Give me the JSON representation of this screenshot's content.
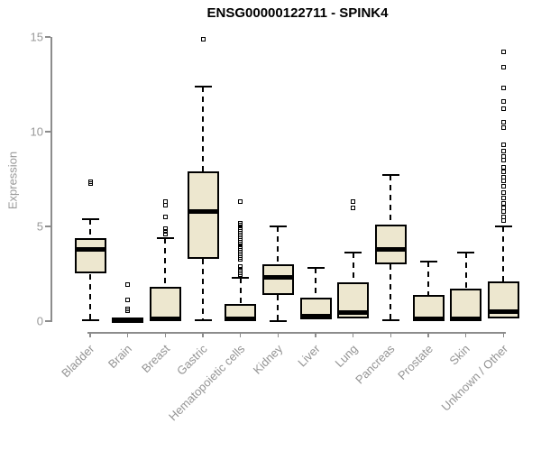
{
  "title": "ENSG00000122711 - SPINK4",
  "chart_data": {
    "type": "boxplot",
    "title": "ENSG00000122711 - SPINK4",
    "xlabel": "",
    "ylabel": "Expression",
    "ylim": [
      0,
      15
    ],
    "yticks": [
      0,
      5,
      10,
      15
    ],
    "grid": false,
    "legend": "none",
    "colors": {
      "box_fill": "#ede7cf",
      "box_border": "#000000",
      "median": "#000000",
      "whisker": "#000000",
      "axis": "#8c8c8c",
      "tick_label": "#999999",
      "title": "#000000"
    },
    "categories": [
      "Bladder",
      "Brain",
      "Breast",
      "Gastric",
      "Hematopoietic cells",
      "Kidney",
      "Liver",
      "Lung",
      "Pancreas",
      "Prostate",
      "Skin",
      "Unknown / Other"
    ],
    "series": [
      {
        "category": "Bladder",
        "whisker_low": 0.05,
        "q1": 2.5,
        "median": 3.8,
        "q3": 4.4,
        "whisker_high": 5.4,
        "outliers": [
          7.25,
          7.35
        ]
      },
      {
        "category": "Brain",
        "whisker_low": null,
        "q1": 0.0,
        "median": 0.05,
        "q3": 0.1,
        "whisker_high": null,
        "outliers": [
          0.55,
          0.65,
          1.1,
          1.95
        ]
      },
      {
        "category": "Breast",
        "whisker_low": null,
        "q1": 0.05,
        "median": 0.12,
        "q3": 1.8,
        "whisker_high": 4.4,
        "outliers": [
          4.6,
          4.75,
          4.9,
          5.5,
          6.1,
          6.3
        ]
      },
      {
        "category": "Gastric",
        "whisker_low": 0.05,
        "q1": 3.3,
        "median": 5.8,
        "q3": 7.9,
        "whisker_high": 12.4,
        "outliers": [
          14.9
        ]
      },
      {
        "category": "Hematopoietic cells",
        "whisker_low": null,
        "q1": 0.03,
        "median": 0.1,
        "q3": 0.9,
        "whisker_high": 2.3,
        "outliers": [
          2.35,
          2.45,
          2.55,
          2.65,
          2.75,
          2.9,
          3.25,
          3.35,
          3.45,
          3.55,
          3.65,
          3.75,
          3.85,
          3.95,
          4.05,
          4.15,
          4.25,
          4.35,
          4.45,
          4.55,
          4.65,
          4.75,
          4.85,
          4.95,
          5.05,
          5.15,
          6.3
        ]
      },
      {
        "category": "Kidney",
        "whisker_low": 0.0,
        "q1": 1.4,
        "median": 2.3,
        "q3": 3.0,
        "whisker_high": 5.0,
        "outliers": []
      },
      {
        "category": "Liver",
        "whisker_low": null,
        "q1": 0.1,
        "median": 0.28,
        "q3": 1.25,
        "whisker_high": 2.8,
        "outliers": []
      },
      {
        "category": "Lung",
        "whisker_low": null,
        "q1": 0.15,
        "median": 0.45,
        "q3": 2.05,
        "whisker_high": 3.6,
        "outliers": [
          6.0,
          6.3
        ]
      },
      {
        "category": "Pancreas",
        "whisker_low": 0.05,
        "q1": 3.0,
        "median": 3.8,
        "q3": 5.1,
        "whisker_high": 7.7,
        "outliers": []
      },
      {
        "category": "Prostate",
        "whisker_low": null,
        "q1": 0.03,
        "median": 0.1,
        "q3": 1.4,
        "whisker_high": 3.15,
        "outliers": []
      },
      {
        "category": "Skin",
        "whisker_low": null,
        "q1": 0.04,
        "median": 0.1,
        "q3": 1.7,
        "whisker_high": 3.6,
        "outliers": []
      },
      {
        "category": "Unknown / Other",
        "whisker_low": null,
        "q1": 0.15,
        "median": 0.5,
        "q3": 2.1,
        "whisker_high": 5.0,
        "outliers": [
          5.3,
          5.5,
          5.8,
          6.0,
          6.2,
          6.5,
          6.8,
          7.1,
          7.4,
          7.6,
          7.9,
          8.1,
          8.5,
          8.7,
          9.0,
          9.3,
          10.2,
          10.5,
          11.2,
          11.6,
          12.3,
          13.4,
          14.2
        ]
      }
    ]
  }
}
